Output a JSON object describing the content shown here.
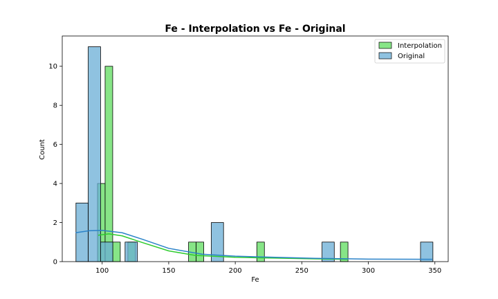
{
  "chart_data": {
    "type": "histogram",
    "title": "Fe - Interpolation vs Fe - Original",
    "xlabel": "Fe",
    "ylabel": "Count",
    "xlim": [
      70,
      360
    ],
    "ylim": [
      0,
      11.55
    ],
    "xticks": [
      100,
      150,
      200,
      250,
      300,
      350
    ],
    "yticks": [
      0,
      2,
      4,
      6,
      8,
      10
    ],
    "grid": false,
    "legend_position": "top-right",
    "series": [
      {
        "name": "Interpolation",
        "color": "#5fdc5f",
        "kde_color": "#2ecc2e",
        "bins": [
          {
            "x0": 96.5,
            "x1": 102.2,
            "count": 4
          },
          {
            "x0": 102.2,
            "x1": 107.9,
            "count": 10
          },
          {
            "x0": 107.9,
            "x1": 113.6,
            "count": 1
          },
          {
            "x0": 119.3,
            "x1": 125.0,
            "count": 1
          },
          {
            "x0": 164.9,
            "x1": 170.6,
            "count": 1
          },
          {
            "x0": 170.6,
            "x1": 176.3,
            "count": 1
          },
          {
            "x0": 216.2,
            "x1": 221.9,
            "count": 1
          },
          {
            "x0": 279.0,
            "x1": 284.7,
            "count": 1
          }
        ],
        "kde": [
          {
            "x": 97,
            "y": 1.35
          },
          {
            "x": 105,
            "y": 1.42
          },
          {
            "x": 115,
            "y": 1.32
          },
          {
            "x": 130,
            "y": 0.98
          },
          {
            "x": 150,
            "y": 0.55
          },
          {
            "x": 170,
            "y": 0.32
          },
          {
            "x": 200,
            "y": 0.22
          },
          {
            "x": 230,
            "y": 0.18
          },
          {
            "x": 260,
            "y": 0.14
          },
          {
            "x": 285,
            "y": 0.12
          }
        ]
      },
      {
        "name": "Original",
        "color": "#6aaed6",
        "kde_color": "#2a82c8",
        "bins": [
          {
            "x0": 80.3,
            "x1": 89.5,
            "count": 3
          },
          {
            "x0": 89.5,
            "x1": 98.8,
            "count": 11
          },
          {
            "x0": 98.8,
            "x1": 108.0,
            "count": 1
          },
          {
            "x0": 117.2,
            "x1": 126.5,
            "count": 1
          },
          {
            "x0": 182.0,
            "x1": 191.2,
            "count": 2
          },
          {
            "x0": 265.2,
            "x1": 274.4,
            "count": 1
          },
          {
            "x0": 339.2,
            "x1": 348.5,
            "count": 1
          }
        ],
        "kde": [
          {
            "x": 80,
            "y": 1.48
          },
          {
            "x": 90,
            "y": 1.58
          },
          {
            "x": 100,
            "y": 1.6
          },
          {
            "x": 115,
            "y": 1.48
          },
          {
            "x": 130,
            "y": 1.15
          },
          {
            "x": 150,
            "y": 0.68
          },
          {
            "x": 175,
            "y": 0.38
          },
          {
            "x": 200,
            "y": 0.28
          },
          {
            "x": 230,
            "y": 0.22
          },
          {
            "x": 260,
            "y": 0.17
          },
          {
            "x": 300,
            "y": 0.13
          },
          {
            "x": 348,
            "y": 0.12
          }
        ]
      }
    ]
  }
}
